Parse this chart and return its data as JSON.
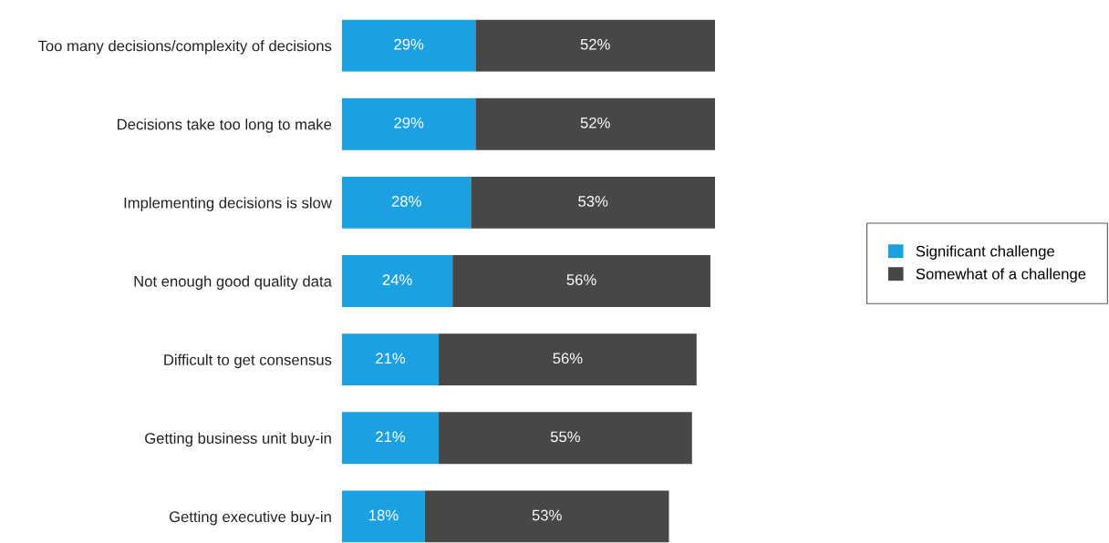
{
  "chart_data": {
    "type": "bar",
    "orientation": "horizontal",
    "stacked": true,
    "tick_labels": "y",
    "legend": "right",
    "grid": false,
    "categories": [
      "Too many decisions/complexity of decisions",
      "Decisions take too long to make",
      "Implementing decisions is slow",
      "Not enough good quality data",
      "Difficult to get consensus",
      "Getting business unit buy-in",
      "Getting executive buy-in"
    ],
    "series": [
      {
        "name": "Significant challenge",
        "color": "#1ba1e2",
        "values": [
          29,
          29,
          28,
          24,
          21,
          21,
          18
        ],
        "value_labels": [
          "29%",
          "29%",
          "28%",
          "24%",
          "21%",
          "21%",
          "18%"
        ]
      },
      {
        "name": "Somewhat of a challenge",
        "color": "#474747",
        "values": [
          52,
          52,
          53,
          56,
          56,
          55,
          53
        ],
        "value_labels": [
          "52%",
          "52%",
          "53%",
          "56%",
          "56%",
          "55%",
          "53%"
        ]
      }
    ]
  }
}
